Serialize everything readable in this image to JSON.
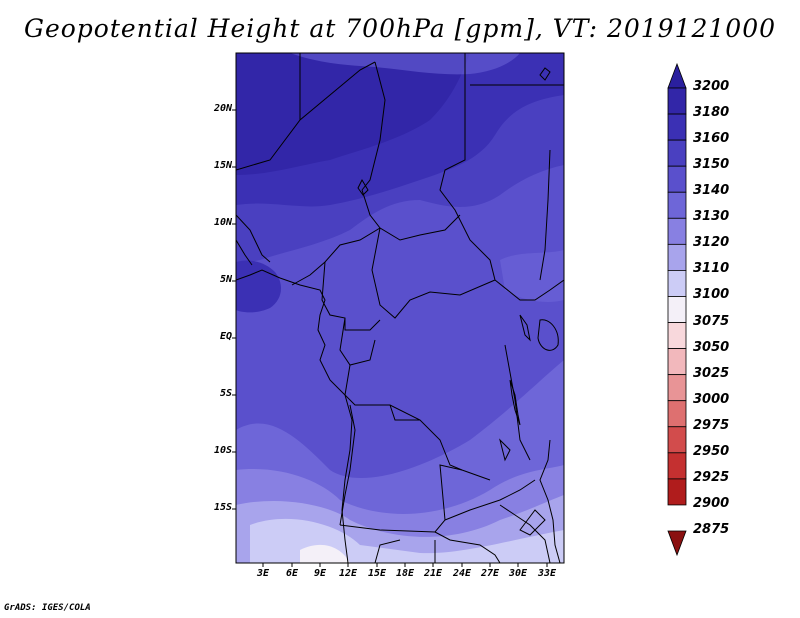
{
  "title": "Geopotential Height at 700hPa [gpm], VT: 2019121000",
  "credit": "GrADS: IGES/COLA",
  "map": {
    "lat_ticks": [
      "20N",
      "15N",
      "10N",
      "5N",
      "EQ",
      "5S",
      "10S",
      "15S"
    ],
    "lon_ticks": [
      "3E",
      "6E",
      "9E",
      "12E",
      "15E",
      "18E",
      "21E",
      "24E",
      "27E",
      "30E",
      "33E"
    ]
  },
  "colorbar": {
    "levels": [
      "3200",
      "3180",
      "3160",
      "3150",
      "3140",
      "3130",
      "3120",
      "3110",
      "3100",
      "3075",
      "3050",
      "3025",
      "3000",
      "2975",
      "2950",
      "2925",
      "2900",
      "2875"
    ],
    "colors": [
      "#2a1f9e",
      "#3226a8",
      "#3b30b4",
      "#4a40c0",
      "#5a50cc",
      "#6e66d8",
      "#8880e2",
      "#a8a4ec",
      "#ccccf6",
      "#f4f0f8",
      "#f8d8dc",
      "#f2b8bc",
      "#e89496",
      "#de7070",
      "#d24c4c",
      "#c43030",
      "#b01c1c",
      "#8a1010"
    ]
  }
}
